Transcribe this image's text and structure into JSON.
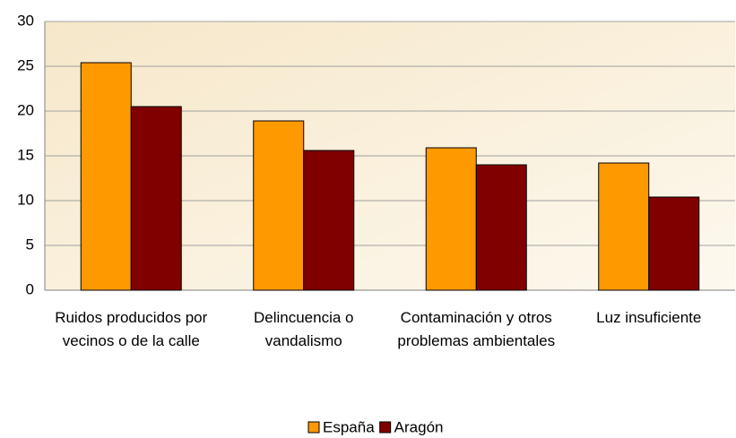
{
  "chart_data": {
    "type": "bar",
    "categories": [
      "Ruidos producidos por vecinos o de la calle",
      "Delincuencia o vandalismo",
      "Contaminación y otros problemas ambientales",
      "Luz insuficiente"
    ],
    "series": [
      {
        "name": "España",
        "color": "#ff9900",
        "values": [
          25.4,
          18.9,
          15.9,
          14.2
        ]
      },
      {
        "name": "Aragón",
        "color": "#800000",
        "values": [
          20.5,
          15.6,
          14.0,
          10.4
        ]
      }
    ],
    "ylim": [
      0,
      30
    ],
    "yticks": [
      0,
      5,
      10,
      15,
      20,
      25,
      30
    ],
    "grid": true,
    "legend": "bottom"
  }
}
